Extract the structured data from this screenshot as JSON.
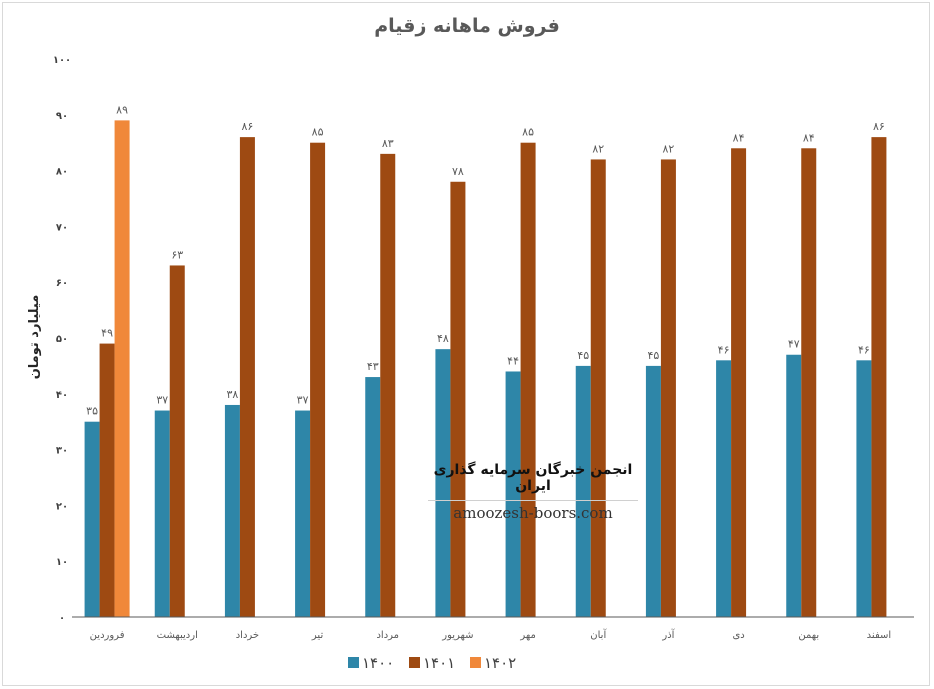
{
  "chart_data": {
    "type": "bar",
    "title": "فروش ماهانه زقیام",
    "ylabel": "میلیارد تومان",
    "xlabel": "",
    "ylim": [
      0,
      100
    ],
    "yticks": [
      "۰",
      "۱۰",
      "۲۰",
      "۳۰",
      "۴۰",
      "۵۰",
      "۶۰",
      "۷۰",
      "۸۰",
      "۹۰",
      "۱۰۰"
    ],
    "grid": false,
    "legend_position": "bottom",
    "categories": [
      "فروردین",
      "اردیبهشت",
      "خرداد",
      "تیر",
      "مرداد",
      "شهریور",
      "مهر",
      "آبان",
      "آذر",
      "دی",
      "بهمن",
      "اسفند"
    ],
    "series": [
      {
        "name": "۱۴۰۰",
        "color": "#2e86a8",
        "values": [
          35,
          37,
          38,
          37,
          43,
          48,
          44,
          45,
          45,
          46,
          47,
          46
        ],
        "labels": [
          "۳۵",
          "۳۷",
          "۳۸",
          "۳۷",
          "۴۳",
          "۴۸",
          "۴۴",
          "۴۵",
          "۴۵",
          "۴۶",
          "۴۷",
          "۴۶"
        ]
      },
      {
        "name": "۱۴۰۱",
        "color": "#9e4a12",
        "values": [
          49,
          63,
          86,
          85,
          83,
          78,
          85,
          82,
          82,
          84,
          84,
          86
        ],
        "labels": [
          "۴۹",
          "۶۳",
          "۸۶",
          "۸۵",
          "۸۳",
          "۷۸",
          "۸۵",
          "۸۲",
          "۸۲",
          "۸۴",
          "۸۴",
          "۸۶"
        ]
      },
      {
        "name": "۱۴۰۲",
        "color": "#f0883a",
        "values": [
          89,
          null,
          null,
          null,
          null,
          null,
          null,
          null,
          null,
          null,
          null,
          null
        ],
        "labels": [
          "۸۹",
          "",
          "",
          "",
          "",
          "",
          "",
          "",
          "",
          "",
          "",
          ""
        ]
      }
    ]
  },
  "watermark": {
    "line1": "انجمن خبرگان سرمایه گذاری ایران",
    "line2": "amoozesh-boors.com"
  }
}
